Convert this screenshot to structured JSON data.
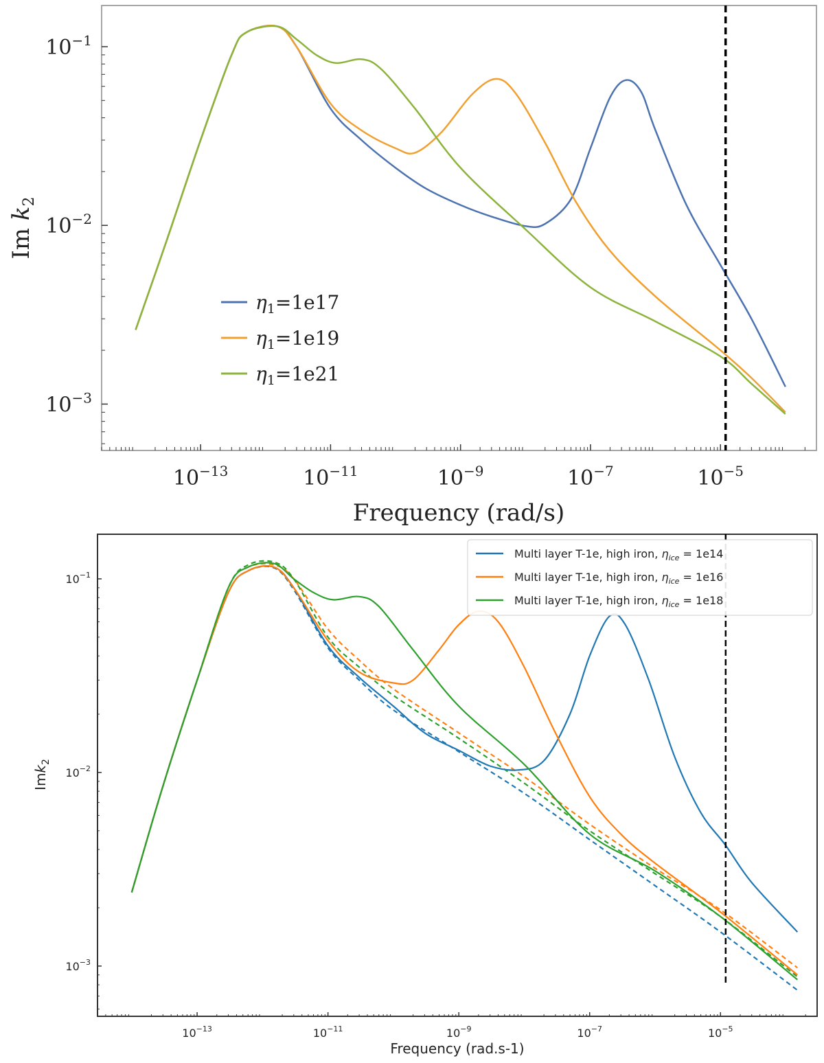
{
  "chart_data": [
    {
      "type": "line",
      "xscale": "log",
      "yscale": "log",
      "title": "",
      "xlabel": "Frequency (rad/s)",
      "ylabel": "Im k2",
      "ylabel_main": "Im ",
      "ylabel_var": "k",
      "ylabel_sub": "2",
      "xlim": [
        3e-15,
        0.0003
      ],
      "ylim": [
        0.00055,
        0.17
      ],
      "x_ticks": [
        {
          "value": 1e-13,
          "base": "10",
          "exp": "−13"
        },
        {
          "value": 1e-11,
          "base": "10",
          "exp": "−11"
        },
        {
          "value": 1e-09,
          "base": "10",
          "exp": "−9"
        },
        {
          "value": 1e-07,
          "base": "10",
          "exp": "−7"
        },
        {
          "value": 1e-05,
          "base": "10",
          "exp": "−5"
        }
      ],
      "y_ticks": [
        {
          "value": 0.1,
          "base": "10",
          "exp": "−1"
        },
        {
          "value": 0.01,
          "base": "10",
          "exp": "−2"
        },
        {
          "value": 0.001,
          "base": "10",
          "exp": "−3"
        }
      ],
      "vline": {
        "x": 1.2e-05,
        "style": "dashed",
        "color": "#000000"
      },
      "legend_placement": "lower-left",
      "series": [
        {
          "name": "η1=1e17",
          "legend_sym": "η",
          "legend_sub": "1",
          "legend_text": "=1e17",
          "color": "#4c72b0",
          "style": "solid",
          "points": [
            [
              1e-14,
              0.0026
            ],
            [
              3e-14,
              0.0082
            ],
            [
              1e-13,
              0.03
            ],
            [
              3e-13,
              0.09
            ],
            [
              5e-13,
              0.12
            ],
            [
              1.5e-12,
              0.13
            ],
            [
              3e-12,
              0.1
            ],
            [
              1e-11,
              0.045
            ],
            [
              3e-11,
              0.03
            ],
            [
              1e-10,
              0.021
            ],
            [
              3e-10,
              0.016
            ],
            [
              1e-09,
              0.013
            ],
            [
              3e-09,
              0.0112
            ],
            [
              1e-08,
              0.0099
            ],
            [
              2e-08,
              0.0102
            ],
            [
              5e-08,
              0.014
            ],
            [
              1e-07,
              0.027
            ],
            [
              2e-07,
              0.052
            ],
            [
              3.5e-07,
              0.065
            ],
            [
              6e-07,
              0.056
            ],
            [
              1e-06,
              0.034
            ],
            [
              3e-06,
              0.013
            ],
            [
              1e-05,
              0.006
            ],
            [
              3e-05,
              0.003
            ],
            [
              0.0001,
              0.00125
            ]
          ]
        },
        {
          "name": "η1=1e19",
          "legend_sym": "η",
          "legend_sub": "1",
          "legend_text": "=1e19",
          "color": "#f0a030",
          "style": "solid",
          "points": [
            [
              1e-14,
              0.0026
            ],
            [
              3e-14,
              0.0082
            ],
            [
              1e-13,
              0.03
            ],
            [
              3e-13,
              0.09
            ],
            [
              5e-13,
              0.12
            ],
            [
              1.5e-12,
              0.13
            ],
            [
              3e-12,
              0.1
            ],
            [
              1e-11,
              0.048
            ],
            [
              3e-11,
              0.034
            ],
            [
              1e-10,
              0.027
            ],
            [
              2e-10,
              0.0255
            ],
            [
              5e-10,
              0.033
            ],
            [
              1.5e-09,
              0.054
            ],
            [
              3.5e-09,
              0.066
            ],
            [
              7e-09,
              0.055
            ],
            [
              2e-08,
              0.029
            ],
            [
              6e-08,
              0.0135
            ],
            [
              2e-07,
              0.0072
            ],
            [
              1e-06,
              0.004
            ],
            [
              1e-05,
              0.002
            ],
            [
              3e-05,
              0.0014
            ],
            [
              0.0001,
              0.0009
            ]
          ]
        },
        {
          "name": "η1=1e21",
          "legend_sym": "η",
          "legend_sub": "1",
          "legend_text": "=1e21",
          "color": "#8cb43c",
          "style": "solid",
          "points": [
            [
              1e-14,
              0.0026
            ],
            [
              3e-14,
              0.0082
            ],
            [
              1e-13,
              0.03
            ],
            [
              3e-13,
              0.09
            ],
            [
              5e-13,
              0.12
            ],
            [
              1.5e-12,
              0.13
            ],
            [
              3e-12,
              0.11
            ],
            [
              6e-12,
              0.09
            ],
            [
              1.2e-11,
              0.081
            ],
            [
              3e-11,
              0.085
            ],
            [
              6e-11,
              0.075
            ],
            [
              2e-10,
              0.045
            ],
            [
              1e-09,
              0.021
            ],
            [
              1e-08,
              0.0095
            ],
            [
              1e-07,
              0.0045
            ],
            [
              1e-06,
              0.0029
            ],
            [
              1e-05,
              0.00185
            ],
            [
              3e-05,
              0.0013
            ],
            [
              0.0001,
              0.00088
            ]
          ]
        }
      ]
    },
    {
      "type": "line",
      "xscale": "log",
      "yscale": "log",
      "title": "",
      "xlabel": "Frequency (rad.s-1)",
      "ylabel": "Imk2",
      "ylabel_main": "Im",
      "ylabel_var": "k",
      "ylabel_sub": "2",
      "xlim": [
        3e-15,
        0.0003
      ],
      "ylim": [
        0.00055,
        0.17
      ],
      "x_ticks": [
        {
          "value": 1e-13,
          "base": "10",
          "exp": "−13"
        },
        {
          "value": 1e-11,
          "base": "10",
          "exp": "−11"
        },
        {
          "value": 1e-09,
          "base": "10",
          "exp": "−9"
        },
        {
          "value": 1e-07,
          "base": "10",
          "exp": "−7"
        },
        {
          "value": 1e-05,
          "base": "10",
          "exp": "−5"
        }
      ],
      "y_ticks": [
        {
          "value": 0.1,
          "base": "10",
          "exp": "−1"
        },
        {
          "value": 0.01,
          "base": "10",
          "exp": "−2"
        },
        {
          "value": 0.001,
          "base": "10",
          "exp": "−3"
        }
      ],
      "vline": {
        "x": 1.2e-05,
        "ymin": 0.00082,
        "ymax": 0.17,
        "style": "dashed",
        "color": "#000000"
      },
      "legend_placement": "top-right",
      "series": [
        {
          "name": "Multi layer T-1e, high iron, η_ice = 1e14",
          "legend_prefix": "Multi layer T-1e, high iron, ",
          "legend_sym": "η",
          "legend_sub": "ice",
          "legend_text": " = 1e14",
          "color": "#1f77b4",
          "style": "solid",
          "points": [
            [
              1e-14,
              0.0024
            ],
            [
              3e-14,
              0.0085
            ],
            [
              1e-13,
              0.03
            ],
            [
              3e-13,
              0.085
            ],
            [
              6e-13,
              0.11
            ],
            [
              1.5e-12,
              0.115
            ],
            [
              3e-12,
              0.09
            ],
            [
              1e-11,
              0.045
            ],
            [
              3e-11,
              0.031
            ],
            [
              1e-10,
              0.022
            ],
            [
              3e-10,
              0.016
            ],
            [
              1e-09,
              0.013
            ],
            [
              3e-09,
              0.0108
            ],
            [
              8e-09,
              0.0103
            ],
            [
              2e-08,
              0.0115
            ],
            [
              5e-08,
              0.02
            ],
            [
              1e-07,
              0.04
            ],
            [
              2e-07,
              0.064
            ],
            [
              3.5e-07,
              0.058
            ],
            [
              8e-07,
              0.03
            ],
            [
              2e-06,
              0.012
            ],
            [
              5e-06,
              0.0062
            ],
            [
              1.2e-05,
              0.0042
            ],
            [
              3e-05,
              0.0027
            ],
            [
              0.00015,
              0.0015
            ]
          ]
        },
        {
          "name": "Multi layer T-1e, high iron, η_ice = 1e16",
          "legend_prefix": "Multi layer T-1e, high iron, ",
          "legend_sym": "η",
          "legend_sub": "ice",
          "legend_text": " = 1e16",
          "color": "#ff7f0e",
          "style": "solid",
          "points": [
            [
              1e-14,
              0.0024
            ],
            [
              3e-14,
              0.0085
            ],
            [
              1e-13,
              0.03
            ],
            [
              3e-13,
              0.085
            ],
            [
              6e-13,
              0.11
            ],
            [
              1.5e-12,
              0.115
            ],
            [
              3e-12,
              0.09
            ],
            [
              1e-11,
              0.048
            ],
            [
              3e-11,
              0.033
            ],
            [
              1e-10,
              0.029
            ],
            [
              2e-10,
              0.03
            ],
            [
              5e-10,
              0.043
            ],
            [
              1e-09,
              0.058
            ],
            [
              2e-09,
              0.068
            ],
            [
              4e-09,
              0.06
            ],
            [
              1e-08,
              0.035
            ],
            [
              3e-08,
              0.016
            ],
            [
              1e-07,
              0.0075
            ],
            [
              3e-07,
              0.0048
            ],
            [
              1e-06,
              0.0034
            ],
            [
              1e-05,
              0.0019
            ],
            [
              0.00015,
              0.0009
            ]
          ]
        },
        {
          "name": "Multi layer T-1e, high iron, η_ice = 1e18",
          "legend_prefix": "Multi layer T-1e, high iron, ",
          "legend_sym": "η",
          "legend_sub": "ice",
          "legend_text": " = 1e18",
          "color": "#2ca02c",
          "style": "solid",
          "points": [
            [
              1e-14,
              0.0024
            ],
            [
              3e-14,
              0.0085
            ],
            [
              1e-13,
              0.03
            ],
            [
              3e-13,
              0.09
            ],
            [
              6e-13,
              0.115
            ],
            [
              1.5e-12,
              0.12
            ],
            [
              3e-12,
              0.1
            ],
            [
              6e-12,
              0.085
            ],
            [
              1.2e-11,
              0.078
            ],
            [
              3e-11,
              0.081
            ],
            [
              6e-11,
              0.072
            ],
            [
              2e-10,
              0.043
            ],
            [
              1e-09,
              0.022
            ],
            [
              1e-08,
              0.011
            ],
            [
              1e-07,
              0.0048
            ],
            [
              1e-06,
              0.0031
            ],
            [
              1e-05,
              0.0018
            ],
            [
              0.00015,
              0.00085
            ]
          ]
        },
        {
          "name": "dashed 1e14",
          "color": "#1f77b4",
          "style": "dashed",
          "points": [
            [
              1e-14,
              0.0024
            ],
            [
              3e-14,
              0.0085
            ],
            [
              1e-13,
              0.03
            ],
            [
              3e-13,
              0.085
            ],
            [
              6e-13,
              0.11
            ],
            [
              1.5e-12,
              0.114
            ],
            [
              3e-12,
              0.088
            ],
            [
              1e-11,
              0.044
            ],
            [
              3e-11,
              0.03
            ],
            [
              1e-10,
              0.021
            ],
            [
              1e-09,
              0.0128
            ],
            [
              1e-08,
              0.0078
            ],
            [
              1e-07,
              0.0045
            ],
            [
              1e-06,
              0.0026
            ],
            [
              1e-05,
              0.0015
            ],
            [
              0.00015,
              0.00075
            ]
          ]
        },
        {
          "name": "dashed 1e16",
          "color": "#ff7f0e",
          "style": "dashed",
          "points": [
            [
              1e-14,
              0.0024
            ],
            [
              3e-14,
              0.0085
            ],
            [
              1e-13,
              0.03
            ],
            [
              3e-13,
              0.09
            ],
            [
              6e-13,
              0.115
            ],
            [
              1.5e-12,
              0.118
            ],
            [
              3e-12,
              0.1
            ],
            [
              1e-11,
              0.055
            ],
            [
              3e-11,
              0.038
            ],
            [
              1e-10,
              0.027
            ],
            [
              1e-09,
              0.016
            ],
            [
              1e-08,
              0.0095
            ],
            [
              1e-07,
              0.0054
            ],
            [
              1e-06,
              0.0032
            ],
            [
              1e-05,
              0.00195
            ],
            [
              0.00015,
              0.00098
            ]
          ]
        },
        {
          "name": "dashed 1e18",
          "color": "#2ca02c",
          "style": "dashed",
          "points": [
            [
              1e-14,
              0.0024
            ],
            [
              3e-14,
              0.0085
            ],
            [
              1e-13,
              0.03
            ],
            [
              3e-13,
              0.09
            ],
            [
              6e-13,
              0.118
            ],
            [
              1.5e-12,
              0.122
            ],
            [
              3e-12,
              0.1
            ],
            [
              1e-11,
              0.05
            ],
            [
              3e-11,
              0.035
            ],
            [
              1e-10,
              0.025
            ],
            [
              1e-09,
              0.015
            ],
            [
              1e-08,
              0.0088
            ],
            [
              1e-07,
              0.005
            ],
            [
              1e-06,
              0.003
            ],
            [
              1e-05,
              0.0018
            ],
            [
              0.00015,
              0.00088
            ]
          ]
        }
      ]
    }
  ]
}
